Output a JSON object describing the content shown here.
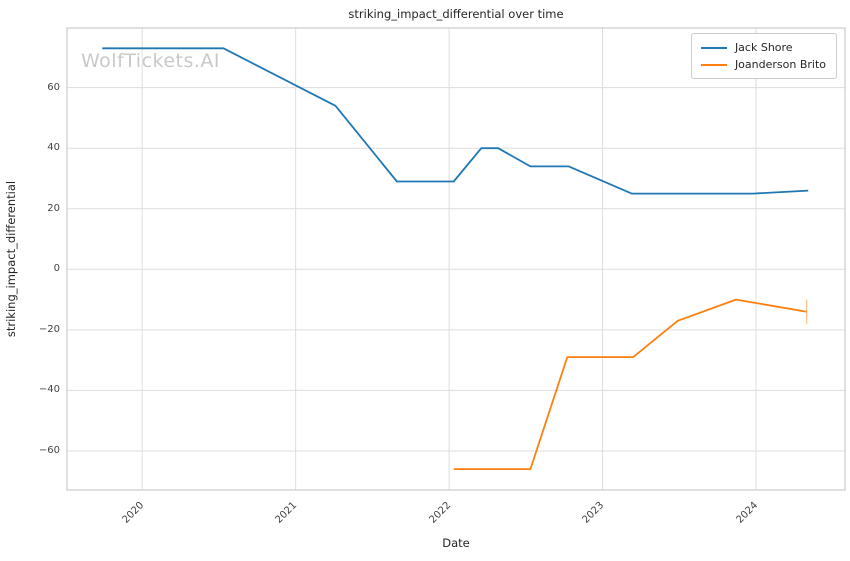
{
  "watermark": "WolfTickets.AI",
  "chart_data": {
    "type": "line",
    "title": "striking_impact_differential over time",
    "xlabel": "Date",
    "ylabel": "striking_impact_differential",
    "grid": true,
    "legend_position": "upper right",
    "xlim": [
      2019.51,
      2024.58
    ],
    "ylim": [
      -72.9,
      79.7
    ],
    "x_ticks": [
      {
        "value": 2020,
        "label": "2020"
      },
      {
        "value": 2021,
        "label": "2021"
      },
      {
        "value": 2022,
        "label": "2022"
      },
      {
        "value": 2023,
        "label": "2023"
      },
      {
        "value": 2024,
        "label": "2024"
      }
    ],
    "y_ticks": [
      {
        "value": 60,
        "label": "60"
      },
      {
        "value": 40,
        "label": "40"
      },
      {
        "value": 20,
        "label": "20"
      },
      {
        "value": 0,
        "label": "0"
      },
      {
        "value": -20,
        "label": "−20"
      },
      {
        "value": -40,
        "label": "−40"
      },
      {
        "value": -60,
        "label": "−60"
      }
    ],
    "series": [
      {
        "name": "Jack Shore",
        "color": "#1f77b4",
        "x": [
          2019.74,
          2020.53,
          2021.26,
          2021.66,
          2022.03,
          2022.21,
          2022.32,
          2022.53,
          2022.78,
          2023.19,
          2023.98,
          2024.34
        ],
        "y": [
          73,
          73,
          54,
          29,
          29,
          40,
          40,
          34,
          34,
          25,
          25,
          26
        ]
      },
      {
        "name": "Joanderson Brito",
        "color": "#ff7f0e",
        "x": [
          2022.03,
          2022.53,
          2022.77,
          2023.2,
          2023.49,
          2023.87,
          2024.33
        ],
        "y": [
          -66,
          -66,
          -29,
          -29,
          -17,
          -10,
          -14
        ],
        "end_error_bar": {
          "x": 2024.33,
          "y": -14,
          "yerr": 4
        }
      }
    ]
  }
}
